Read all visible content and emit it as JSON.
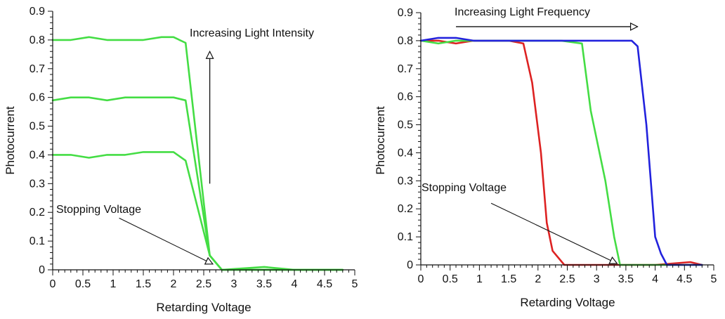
{
  "chart_data": [
    {
      "type": "line",
      "xlabel": "Retarding Voltage",
      "ylabel": "Photocurrent",
      "xlim": [
        0,
        5
      ],
      "ylim": [
        0,
        0.9
      ],
      "xticks": [
        "0",
        "0.5",
        "1",
        "1.5",
        "2",
        "2.5",
        "3",
        "3.5",
        "4",
        "4.5",
        "5"
      ],
      "yticks": [
        "0",
        "0.1",
        "0.2",
        "0.3",
        "0.4",
        "0.5",
        "0.6",
        "0.7",
        "0.8",
        "0.9"
      ],
      "series": [
        {
          "color": "#44dd44",
          "points": [
            [
              0,
              0.8
            ],
            [
              0.3,
              0.8
            ],
            [
              0.6,
              0.81
            ],
            [
              0.9,
              0.8
            ],
            [
              1.2,
              0.8
            ],
            [
              1.5,
              0.8
            ],
            [
              1.8,
              0.81
            ],
            [
              2.0,
              0.81
            ],
            [
              2.2,
              0.79
            ],
            [
              2.6,
              0.05
            ],
            [
              2.8,
              0.0
            ],
            [
              3.5,
              0.0
            ],
            [
              4.0,
              0.0
            ],
            [
              4.8,
              0.0
            ]
          ]
        },
        {
          "color": "#44dd44",
          "points": [
            [
              0,
              0.59
            ],
            [
              0.3,
              0.6
            ],
            [
              0.6,
              0.6
            ],
            [
              0.9,
              0.59
            ],
            [
              1.2,
              0.6
            ],
            [
              1.5,
              0.6
            ],
            [
              1.8,
              0.6
            ],
            [
              2.0,
              0.6
            ],
            [
              2.2,
              0.59
            ],
            [
              2.6,
              0.05
            ],
            [
              2.8,
              0.0
            ],
            [
              3.5,
              0.0
            ],
            [
              4.0,
              0.0
            ],
            [
              4.8,
              0.0
            ]
          ]
        },
        {
          "color": "#44dd44",
          "points": [
            [
              0,
              0.4
            ],
            [
              0.3,
              0.4
            ],
            [
              0.6,
              0.39
            ],
            [
              0.9,
              0.4
            ],
            [
              1.2,
              0.4
            ],
            [
              1.5,
              0.41
            ],
            [
              1.8,
              0.41
            ],
            [
              2.0,
              0.41
            ],
            [
              2.2,
              0.38
            ],
            [
              2.6,
              0.05
            ],
            [
              2.8,
              0.0
            ],
            [
              3.5,
              0.01
            ],
            [
              4.0,
              0.0
            ],
            [
              4.8,
              0.0
            ]
          ]
        }
      ],
      "annotations": [
        {
          "id": "intensity",
          "text": "Increasing Light Intensity",
          "arrow_from": [
            2.6,
            0.3
          ],
          "arrow_to": [
            2.6,
            0.76
          ]
        },
        {
          "id": "stopping",
          "text": "Stopping Voltage",
          "arrow_from": [
            1.1,
            0.18
          ],
          "arrow_to": [
            2.65,
            0.02
          ]
        }
      ]
    },
    {
      "type": "line",
      "xlabel": "Retarding Voltage",
      "ylabel": "Photocurrent",
      "xlim": [
        0,
        5
      ],
      "ylim": [
        0,
        0.9
      ],
      "xticks": [
        "0",
        "0.5",
        "1",
        "1.5",
        "2",
        "2.5",
        "3",
        "3.5",
        "4",
        "4.5",
        "5"
      ],
      "yticks": [
        "0",
        "0.1",
        "0.2",
        "0.3",
        "0.4",
        "0.5",
        "0.6",
        "0.7",
        "0.8",
        "0.9"
      ],
      "series": [
        {
          "color": "#dd2222",
          "points": [
            [
              0,
              0.8
            ],
            [
              0.3,
              0.8
            ],
            [
              0.6,
              0.79
            ],
            [
              0.9,
              0.8
            ],
            [
              1.2,
              0.8
            ],
            [
              1.5,
              0.8
            ],
            [
              1.75,
              0.79
            ],
            [
              1.9,
              0.65
            ],
            [
              2.05,
              0.4
            ],
            [
              2.15,
              0.15
            ],
            [
              2.25,
              0.05
            ],
            [
              2.45,
              0.0
            ],
            [
              3.0,
              0.0
            ],
            [
              4.0,
              0.0
            ],
            [
              4.6,
              0.01
            ],
            [
              4.8,
              0.0
            ]
          ]
        },
        {
          "color": "#44dd44",
          "points": [
            [
              0,
              0.8
            ],
            [
              0.3,
              0.79
            ],
            [
              0.6,
              0.8
            ],
            [
              0.9,
              0.8
            ],
            [
              1.2,
              0.8
            ],
            [
              1.5,
              0.8
            ],
            [
              1.8,
              0.8
            ],
            [
              2.1,
              0.8
            ],
            [
              2.4,
              0.8
            ],
            [
              2.75,
              0.79
            ],
            [
              2.9,
              0.55
            ],
            [
              3.15,
              0.3
            ],
            [
              3.3,
              0.1
            ],
            [
              3.4,
              0.0
            ],
            [
              4.0,
              0.0
            ],
            [
              4.8,
              0.0
            ]
          ]
        },
        {
          "color": "#2222dd",
          "points": [
            [
              0,
              0.8
            ],
            [
              0.3,
              0.81
            ],
            [
              0.6,
              0.81
            ],
            [
              0.9,
              0.8
            ],
            [
              1.2,
              0.8
            ],
            [
              1.5,
              0.8
            ],
            [
              1.8,
              0.8
            ],
            [
              2.1,
              0.8
            ],
            [
              2.4,
              0.8
            ],
            [
              2.7,
              0.8
            ],
            [
              3.0,
              0.8
            ],
            [
              3.3,
              0.8
            ],
            [
              3.6,
              0.8
            ],
            [
              3.7,
              0.78
            ],
            [
              3.85,
              0.5
            ],
            [
              4.0,
              0.1
            ],
            [
              4.1,
              0.04
            ],
            [
              4.2,
              0.0
            ],
            [
              4.6,
              0.0
            ],
            [
              4.8,
              0.0
            ]
          ]
        }
      ],
      "annotations": [
        {
          "id": "frequency",
          "text": "Increasing Light Frequency",
          "arrow_from": [
            0.6,
            0.85
          ],
          "arrow_to": [
            3.7,
            0.85
          ]
        },
        {
          "id": "stopping",
          "text": "Stopping Voltage",
          "arrow_from": [
            1.2,
            0.22
          ],
          "arrow_to": [
            3.35,
            0.005
          ]
        }
      ]
    }
  ]
}
